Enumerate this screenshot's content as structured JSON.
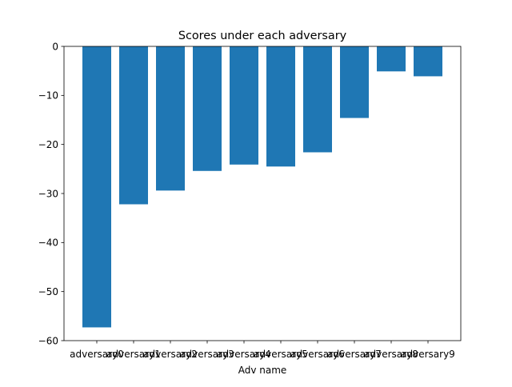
{
  "chart_data": {
    "type": "bar",
    "title": "Scores under each adversary",
    "xlabel": "Adv name",
    "ylabel": "",
    "categories": [
      "adversary0",
      "adversary1",
      "adversary2",
      "adversary3",
      "adversary4",
      "adversary5",
      "adversary6",
      "adversary7",
      "adversary8",
      "adversary9"
    ],
    "values": [
      -57.3,
      -32.2,
      -29.4,
      -25.4,
      -24.1,
      -24.5,
      -21.6,
      -14.6,
      -5.1,
      -6.1
    ],
    "ylim": [
      -60,
      0
    ],
    "yticks": [
      0,
      -10,
      -20,
      -30,
      -40,
      -50,
      -60
    ],
    "ytick_labels": [
      "0",
      "−10",
      "−20",
      "−30",
      "−40",
      "−50",
      "−60"
    ],
    "bar_color": "#1f77b4",
    "grid": false,
    "legend": "none"
  }
}
